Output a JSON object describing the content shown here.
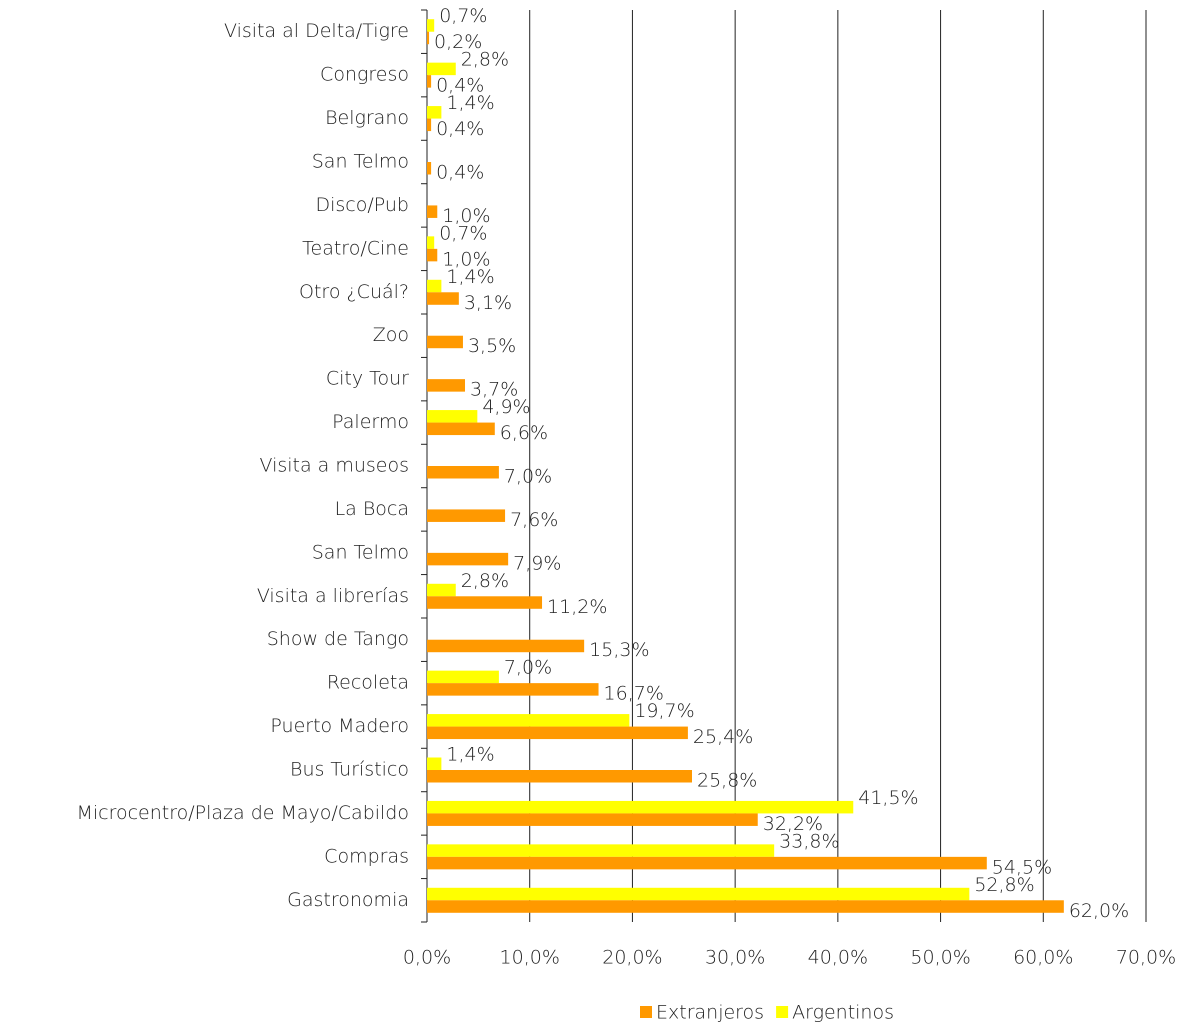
{
  "chart_data": {
    "type": "bar",
    "orientation": "horizontal",
    "categories": [
      "Visita al Delta/Tigre",
      "Congreso",
      "Belgrano",
      "San Telmo",
      "Disco/Pub",
      "Teatro/Cine",
      "Otro ¿Cuál?",
      "Zoo",
      "City Tour",
      "Palermo",
      "Visita a museos",
      "La Boca",
      "San Telmo",
      "Visita a librerías",
      "Show de Tango",
      "Recoleta",
      "Puerto Madero",
      "Bus Turístico",
      "Microcentro/Plaza de Mayo/Cabildo",
      "Compras",
      "Gastronomia"
    ],
    "series": [
      {
        "name": "Argentinos",
        "color": "#ffff00",
        "values": [
          0.7,
          2.8,
          1.4,
          null,
          null,
          0.7,
          1.4,
          null,
          null,
          4.9,
          null,
          null,
          null,
          2.8,
          null,
          7.0,
          19.7,
          1.4,
          41.5,
          33.8,
          52.8
        ],
        "value_labels": [
          "0,7%",
          "2,8%",
          "1,4%",
          null,
          null,
          "0,7%",
          "1,4%",
          null,
          null,
          "4,9%",
          null,
          null,
          null,
          "2,8%",
          null,
          "7,0%",
          "19,7%",
          "1,4%",
          "41,5%",
          "33,8%",
          "52,8%"
        ]
      },
      {
        "name": "Extranjeros",
        "color": "#ff9900",
        "values": [
          0.2,
          0.4,
          0.4,
          0.4,
          1.0,
          1.0,
          3.1,
          3.5,
          3.7,
          6.6,
          7.0,
          7.6,
          7.9,
          11.2,
          15.3,
          16.7,
          25.4,
          25.8,
          32.2,
          54.5,
          62.0
        ],
        "value_labels": [
          "0,2%",
          "0,4%",
          "0,4%",
          "0,4%",
          "1,0%",
          "1,0%",
          "3,1%",
          "3,5%",
          "3,7%",
          "6,6%",
          "7,0%",
          "7,6%",
          "7,9%",
          "11,2%",
          "15,3%",
          "16,7%",
          "25,4%",
          "25,8%",
          "32,2%",
          "54,5%",
          "62,0%"
        ]
      }
    ],
    "xlim": [
      0,
      70
    ],
    "xticks": [
      {
        "value": 0,
        "label": "0,0%"
      },
      {
        "value": 10,
        "label": "10,0%"
      },
      {
        "value": 20,
        "label": "20,0%"
      },
      {
        "value": 30,
        "label": "30,0%"
      },
      {
        "value": 40,
        "label": "40,0%"
      },
      {
        "value": 50,
        "label": "50,0%"
      },
      {
        "value": 60,
        "label": "60,0%"
      },
      {
        "value": 70,
        "label": "70,0%"
      }
    ],
    "grid": true,
    "legend": "bottom"
  }
}
